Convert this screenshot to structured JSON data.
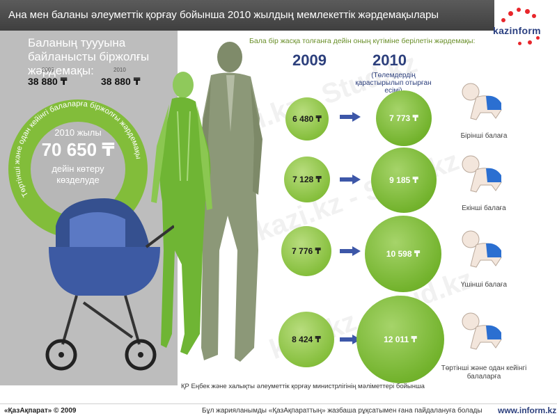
{
  "header": {
    "title": "Ана мен баланы әлеуметтік қорғау бойынша 2010 жылдың мемлекеттік жәрдемақылары"
  },
  "logo": {
    "text": "kazinform"
  },
  "left": {
    "title": "Баланың туууына байланысты біржолғы жәрдемақы:",
    "year_a": "2009",
    "year_b": "2010",
    "amount_a": "38 880 ₸",
    "amount_b": "38 880 ₸",
    "ring_arc_text": "Төртінші және одан кейінгі балаларға біржолғы жәрдемақы",
    "ring_year": "2010 жылы",
    "ring_amount": "70 650 ₸",
    "ring_note_1": "дейін көтеру",
    "ring_note_2": "көзделуде"
  },
  "right": {
    "subtitle": "Бала бір жасқа  толғанға дейін оның күтіміне берілетін жәрдемақы:",
    "year_2009": "2009",
    "year_2010": "2010",
    "note_2010": "(Төлемдердің қарастырылып отырған есімі)",
    "rows": [
      {
        "v2009": "6 480 ₸",
        "v2010": "7 773 ₸",
        "label": "Бірінші балаға"
      },
      {
        "v2009": "7 128 ₸",
        "v2010": "9 185 ₸",
        "label": "Екінші балаға"
      },
      {
        "v2009": "7 776 ₸",
        "v2010": "10 598 ₸",
        "label": "Үшінші балаға"
      },
      {
        "v2009": "8 424 ₸",
        "v2010": "12 011 ₸",
        "label": "Төртінші және одан кейінгі балаларға"
      }
    ]
  },
  "source": "ҚР Еңбек және халықты  әлеуметтік қорғау министрлігінің мәліметтері  бойынша",
  "footer": {
    "left": "«ҚазАқпарат» © 2009",
    "mid": "Бұл жарияланымды «ҚазАқпараттың» жазбаша рұқсатымен ғана пайдалануға болады",
    "right": "www.inform.kz"
  },
  "colors": {
    "green": "#82bd3a",
    "navy": "#2c3f7c",
    "gray_panel": "#bdbdbd",
    "header": "#4a4a4a",
    "arrow": "#3d57a8",
    "diaper": "#2b6fd1"
  }
}
